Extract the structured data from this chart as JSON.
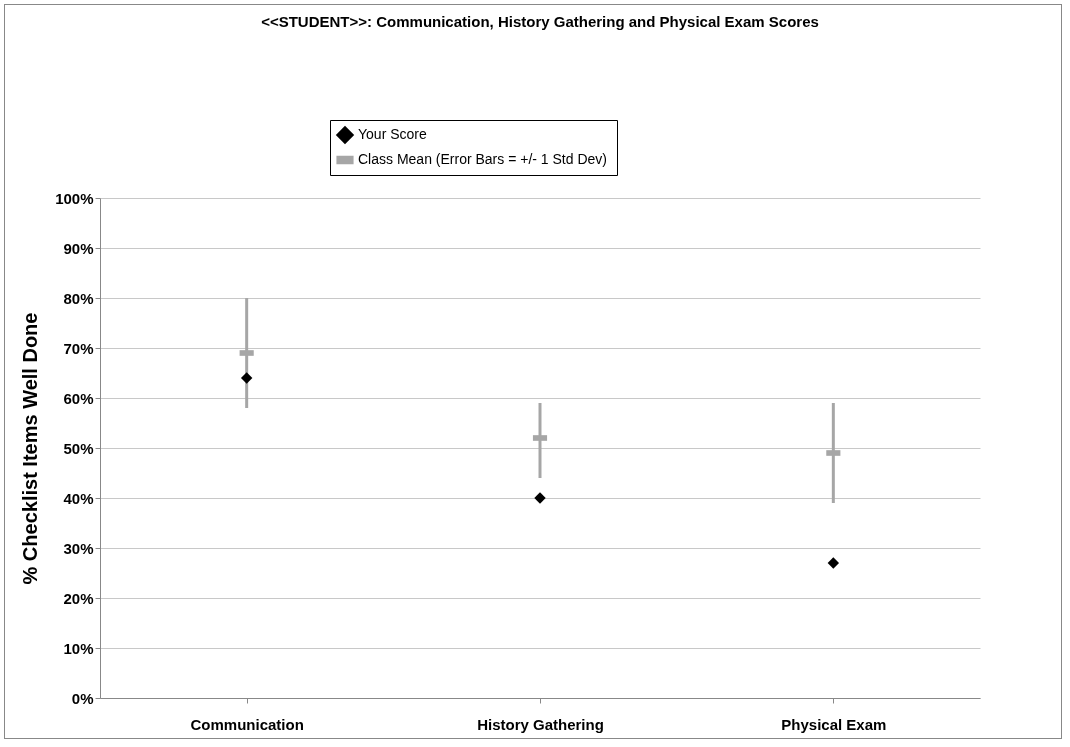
{
  "chart_data": {
    "type": "scatter",
    "title": "<<STUDENT>>: Communication, History Gathering and Physical Exam Scores",
    "ylabel": "% Checklist Items Well Done",
    "categories": [
      "Communication",
      "History Gathering",
      "Physical Exam"
    ],
    "series": [
      {
        "name": "Your Score",
        "color": "#000000",
        "marker": "diamond",
        "values": [
          64,
          40,
          27
        ]
      },
      {
        "name": "Class Mean  (Error Bars = +/- 1 Std Dev)",
        "color": "#a6a6a6",
        "values": [
          69,
          52,
          49
        ],
        "errors": [
          [
            58,
            80
          ],
          [
            44,
            59
          ],
          [
            39,
            59
          ]
        ]
      }
    ],
    "ylim": [
      0,
      100
    ],
    "yticks": [
      {
        "value": 0,
        "label": "0%"
      },
      {
        "value": 10,
        "label": "10%"
      },
      {
        "value": 20,
        "label": "20%"
      },
      {
        "value": 30,
        "label": "30%"
      },
      {
        "value": 40,
        "label": "40%"
      },
      {
        "value": 50,
        "label": "50%"
      },
      {
        "value": 60,
        "label": "60%"
      },
      {
        "value": 70,
        "label": "70%"
      },
      {
        "value": 80,
        "label": "80%"
      },
      {
        "value": 90,
        "label": "90%"
      },
      {
        "value": 100,
        "label": "100%"
      }
    ],
    "grid": "y",
    "legend": "top"
  }
}
